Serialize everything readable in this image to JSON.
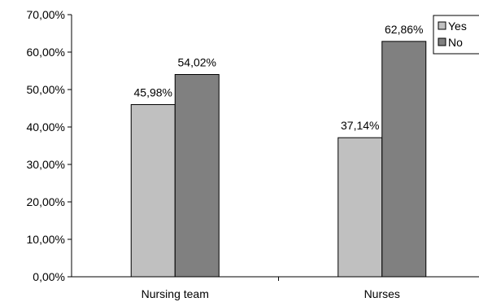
{
  "chart_data": {
    "type": "bar",
    "categories": [
      "Nursing team",
      "Nurses"
    ],
    "series": [
      {
        "name": "Yes",
        "values": [
          45.98,
          37.14
        ],
        "labels": [
          "45,98%",
          "37,14%"
        ],
        "color": "#c0c0c0"
      },
      {
        "name": "No",
        "values": [
          54.02,
          62.86
        ],
        "labels": [
          "54,02%",
          "62,86%"
        ],
        "color": "#808080"
      }
    ],
    "ylim": [
      0,
      70
    ],
    "yticks": [
      {
        "value": 0,
        "label": "0,00%"
      },
      {
        "value": 10,
        "label": "10,00%"
      },
      {
        "value": 20,
        "label": "20,00%"
      },
      {
        "value": 30,
        "label": "30,00%"
      },
      {
        "value": 40,
        "label": "40,00%"
      },
      {
        "value": 50,
        "label": "50,00%"
      },
      {
        "value": 60,
        "label": "60,00%"
      },
      {
        "value": 70,
        "label": "70,00%"
      }
    ],
    "title": "",
    "xlabel": "",
    "ylabel": "",
    "grid": false,
    "legend_position": "top-right"
  }
}
